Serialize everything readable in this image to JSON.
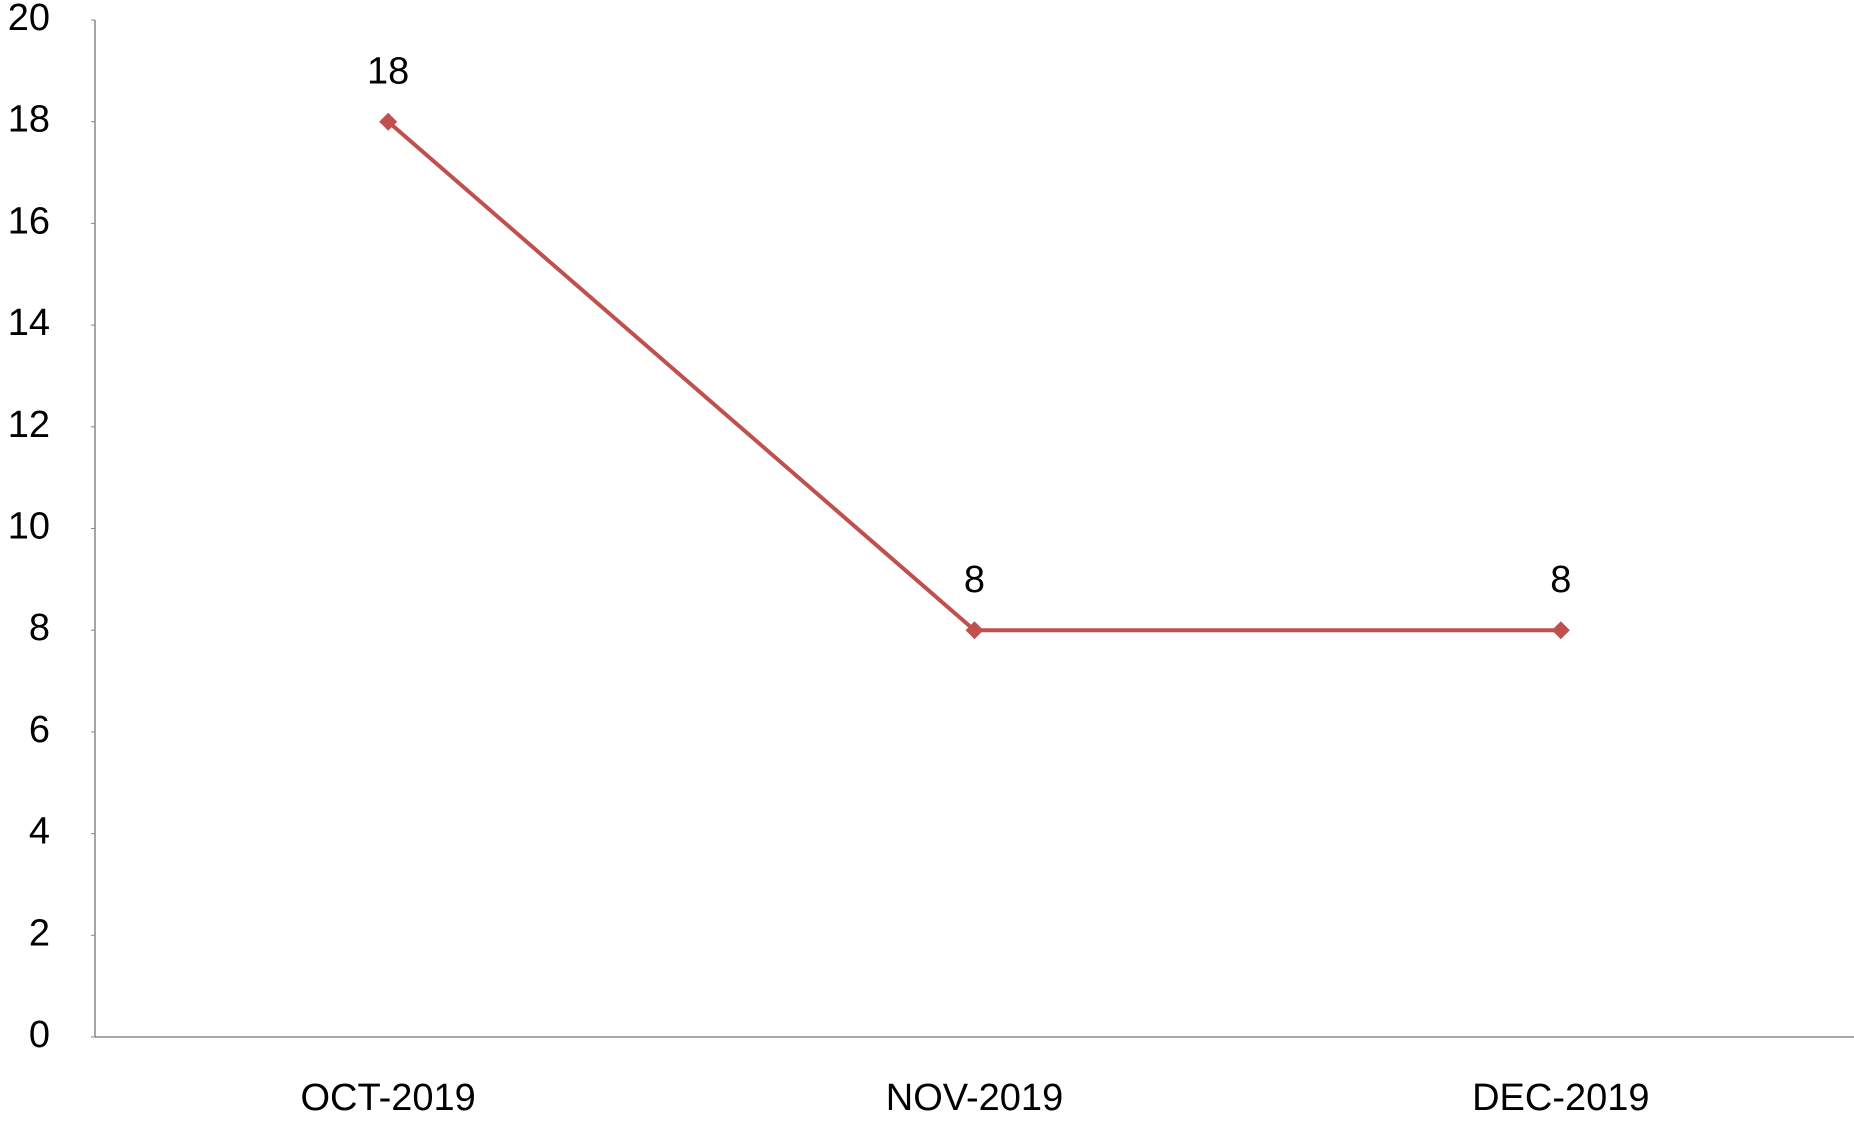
{
  "chart_data": {
    "type": "line",
    "categories": [
      "OCT-2019",
      "NOV-2019",
      "DEC-2019"
    ],
    "series": [
      {
        "color": "#c0504d",
        "values": [
          18,
          8,
          8
        ]
      }
    ],
    "ylim": [
      0,
      20
    ],
    "yticks": [
      0,
      2,
      4,
      6,
      8,
      10,
      12,
      14,
      16,
      18,
      20
    ],
    "grid": false,
    "data_labels": true,
    "marker": "diamond"
  }
}
